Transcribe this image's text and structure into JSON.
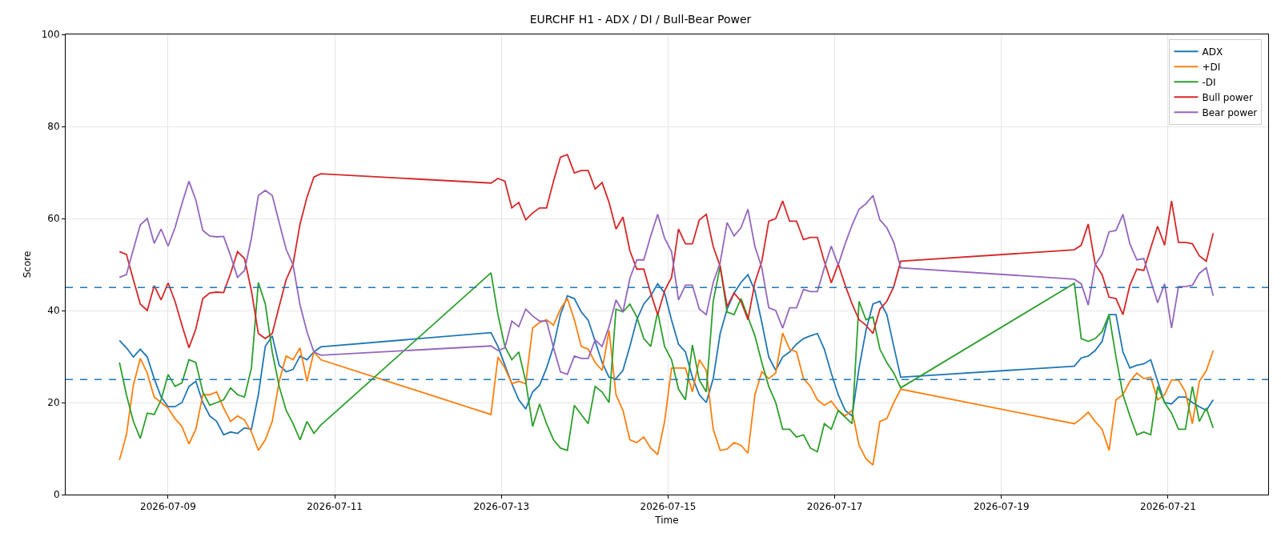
{
  "chart_data": {
    "type": "line",
    "title": "EURCHF H1 - ADX / DI / Bull-Bear Power",
    "xlabel": "Time",
    "ylabel": "Score",
    "x": [
      "2026-07-08T10:00",
      "2026-07-08T12:00",
      "2026-07-08T14:00",
      "2026-07-08T16:00",
      "2026-07-08T18:00",
      "2026-07-08T20:00",
      "2026-07-08T22:00",
      "2026-07-09T00:00",
      "2026-07-09T02:00",
      "2026-07-09T04:00",
      "2026-07-09T06:00",
      "2026-07-09T08:00",
      "2026-07-09T10:00",
      "2026-07-09T12:00",
      "2026-07-09T14:00",
      "2026-07-09T16:00",
      "2026-07-09T18:00",
      "2026-07-09T20:00",
      "2026-07-09T22:00",
      "2026-07-10T00:00",
      "2026-07-10T02:00",
      "2026-07-10T04:00",
      "2026-07-10T06:00",
      "2026-07-10T08:00",
      "2026-07-10T10:00",
      "2026-07-10T12:00",
      "2026-07-10T14:00",
      "2026-07-10T16:00",
      "2026-07-10T18:00",
      "2026-07-10T20:00",
      "2026-07-12T21:00",
      "2026-07-12T23:00",
      "2026-07-13T01:00",
      "2026-07-13T03:00",
      "2026-07-13T05:00",
      "2026-07-13T07:00",
      "2026-07-13T09:00",
      "2026-07-13T11:00",
      "2026-07-13T13:00",
      "2026-07-13T15:00",
      "2026-07-13T17:00",
      "2026-07-13T19:00",
      "2026-07-13T21:00",
      "2026-07-13T23:00",
      "2026-07-14T01:00",
      "2026-07-14T03:00",
      "2026-07-14T05:00",
      "2026-07-14T07:00",
      "2026-07-14T09:00",
      "2026-07-14T11:00",
      "2026-07-14T13:00",
      "2026-07-14T15:00",
      "2026-07-14T17:00",
      "2026-07-14T19:00",
      "2026-07-14T21:00",
      "2026-07-14T23:00",
      "2026-07-15T01:00",
      "2026-07-15T03:00",
      "2026-07-15T05:00",
      "2026-07-15T07:00",
      "2026-07-15T09:00",
      "2026-07-15T11:00",
      "2026-07-15T13:00",
      "2026-07-15T15:00",
      "2026-07-15T17:00",
      "2026-07-15T19:00",
      "2026-07-15T21:00",
      "2026-07-15T23:00",
      "2026-07-16T01:00",
      "2026-07-16T03:00",
      "2026-07-16T05:00",
      "2026-07-16T07:00",
      "2026-07-16T09:00",
      "2026-07-16T11:00",
      "2026-07-16T13:00",
      "2026-07-16T15:00",
      "2026-07-16T17:00",
      "2026-07-16T19:00",
      "2026-07-16T21:00",
      "2026-07-16T23:00",
      "2026-07-17T01:00",
      "2026-07-17T03:00",
      "2026-07-17T05:00",
      "2026-07-17T07:00",
      "2026-07-17T09:00",
      "2026-07-17T11:00",
      "2026-07-17T13:00",
      "2026-07-17T15:00",
      "2026-07-17T17:00",
      "2026-07-17T19:00",
      "2026-07-19T21:00",
      "2026-07-19T23:00",
      "2026-07-20T01:00",
      "2026-07-20T03:00",
      "2026-07-20T05:00",
      "2026-07-20T07:00",
      "2026-07-20T09:00",
      "2026-07-20T11:00",
      "2026-07-20T13:00",
      "2026-07-20T15:00",
      "2026-07-20T17:00",
      "2026-07-20T19:00",
      "2026-07-20T21:00",
      "2026-07-20T23:00",
      "2026-07-21T01:00",
      "2026-07-21T03:00",
      "2026-07-21T05:00",
      "2026-07-21T07:00",
      "2026-07-21T09:00",
      "2026-07-21T11:00",
      "2026-07-21T13:00"
    ],
    "series": [
      {
        "name": "ADX",
        "color": "#1f77b4",
        "values": [
          33.5,
          31.9,
          29.9,
          31.6,
          29.9,
          25.2,
          21.2,
          19.1,
          19.1,
          20,
          23.5,
          24.6,
          20,
          17.1,
          15.9,
          13,
          13.6,
          13.3,
          14.5,
          14.2,
          21.7,
          32.2,
          34.5,
          28.1,
          26.7,
          27.2,
          30.1,
          29.3,
          31,
          32.1,
          35.2,
          32.2,
          28.1,
          24.1,
          20.6,
          18.6,
          22.3,
          23.8,
          27.5,
          32.2,
          39.1,
          43.2,
          42.6,
          39.7,
          37.9,
          33.3,
          28.7,
          25.5,
          25.2,
          27,
          32.2,
          38,
          41.4,
          43.2,
          45.8,
          43.8,
          37.9,
          32.7,
          31,
          25.5,
          21.7,
          20,
          25.2,
          35,
          40.3,
          43.8,
          46.1,
          47.8,
          44.3,
          37.4,
          29.9,
          27,
          29.9,
          31,
          32.7,
          33.9,
          34.5,
          35,
          31.6,
          26.4,
          21.7,
          18.3,
          17.1,
          27.5,
          35.7,
          41.4,
          42,
          39.1,
          32.2,
          25.5,
          27.9,
          29.7,
          30.1,
          31.3,
          33.3,
          39.1,
          39.1,
          31,
          27.5,
          28.1,
          28.4,
          29.3,
          24.6,
          20,
          19.7,
          21.2,
          21.2,
          20,
          19.1,
          18.3,
          20.6
        ]
      },
      {
        "name": "+DI",
        "color": "#ff7f0e",
        "values": [
          7.5,
          13,
          23.8,
          29.6,
          26.4,
          21.2,
          20,
          18.8,
          16.5,
          14.8,
          11,
          14.2,
          21.7,
          21.7,
          22.3,
          18.8,
          15.9,
          17.1,
          16.2,
          13.6,
          9.6,
          11.9,
          15.9,
          24.6,
          30.1,
          29.3,
          31.9,
          24.6,
          31,
          29.3,
          17.4,
          29.9,
          27.5,
          24.1,
          24.6,
          24.1,
          36.2,
          37.4,
          38,
          36.8,
          40.3,
          42.6,
          38,
          32.2,
          31.6,
          28.7,
          27,
          35.7,
          21.7,
          18.3,
          11.9,
          11.3,
          12.5,
          10.1,
          8.7,
          15.9,
          27.5,
          27.5,
          27.5,
          22.3,
          29.3,
          27,
          14.2,
          9.6,
          9.9,
          11.3,
          10.7,
          9,
          21.7,
          26.7,
          25.2,
          26.4,
          35.1,
          31.6,
          31,
          25.2,
          23.5,
          20.6,
          19.4,
          20.3,
          18.3,
          17.1,
          18.3,
          10.7,
          7.8,
          6.4,
          15.9,
          16.5,
          20,
          22.9,
          15.4,
          16.5,
          17.9,
          15.9,
          14.2,
          9.6,
          20.6,
          21.7,
          24.6,
          26.4,
          25.2,
          25.5,
          20.6,
          21.7,
          24.9,
          24.9,
          22.3,
          15.4,
          24.6,
          26.9,
          31.3
        ]
      },
      {
        "name": "-DI",
        "color": "#2ca02c",
        "values": [
          28.7,
          21.7,
          15.9,
          12.2,
          17.7,
          17.4,
          20.6,
          26.1,
          23.5,
          24.3,
          29.3,
          28.7,
          22.3,
          19.4,
          20,
          20.6,
          23.2,
          21.7,
          21.2,
          27.5,
          46.1,
          41.4,
          31,
          23.5,
          18.3,
          15.4,
          11.9,
          15.9,
          13.3,
          15.1,
          48.2,
          39.1,
          32.2,
          29.3,
          31,
          24.6,
          14.8,
          19.7,
          15.4,
          11.9,
          10.1,
          9.6,
          19.4,
          17.4,
          15.4,
          23.5,
          22.3,
          20,
          40.3,
          39.7,
          41.4,
          38.6,
          33.9,
          32.2,
          39.7,
          32.2,
          29.3,
          22.9,
          20.6,
          32.5,
          24.9,
          22.3,
          42,
          49.6,
          39.7,
          39.1,
          42.6,
          38.6,
          34.5,
          28.7,
          23.5,
          20,
          14.2,
          14.2,
          12.5,
          13,
          10.1,
          9.3,
          15.4,
          14.2,
          18.3,
          16.8,
          15.4,
          42,
          38,
          38.6,
          31.6,
          28.7,
          26.4,
          23.2,
          45.9,
          33.9,
          33.3,
          33.9,
          35.4,
          39.1,
          29.9,
          21.7,
          17.1,
          13,
          13.6,
          13,
          23.5,
          20,
          17.7,
          14.2,
          14.2,
          23.5,
          15.9,
          18.8,
          14.5
        ]
      },
      {
        "name": "Bull power",
        "color": "#d62728",
        "values": [
          52.8,
          52.2,
          46.7,
          41.4,
          40,
          45.4,
          42.3,
          46,
          42,
          36.8,
          31.9,
          36,
          42.6,
          43.8,
          44,
          43.9,
          48.1,
          52.8,
          51.3,
          44.3,
          35,
          33.9,
          35,
          40.9,
          46.7,
          50.1,
          58.8,
          64.6,
          69,
          69.7,
          67.7,
          68.7,
          68.1,
          62.3,
          63.5,
          59.7,
          61.2,
          62.3,
          62.3,
          68.1,
          73.3,
          73.9,
          69.9,
          70.4,
          70.4,
          66.4,
          67.8,
          63.5,
          57.7,
          60.3,
          53,
          49,
          49,
          43.8,
          39.1,
          44.3,
          47.2,
          57.7,
          54.5,
          54.5,
          59.7,
          60.9,
          53.9,
          49.6,
          40.9,
          43.8,
          42,
          38,
          46.1,
          50.7,
          59.4,
          60,
          63.8,
          59.4,
          59.4,
          55.4,
          55.9,
          55.9,
          50.7,
          46,
          50.1,
          45.5,
          41.4,
          38,
          36.8,
          35,
          40.3,
          42,
          45.2,
          50.7,
          53.2,
          54.2,
          58.8,
          50.1,
          47.8,
          42.9,
          42.6,
          39.1,
          45.5,
          49,
          48.7,
          53.6,
          58.3,
          54.2,
          63.8,
          54.8,
          54.8,
          54.5,
          51.9,
          50.7,
          56.8
        ]
      },
      {
        "name": "Bear power",
        "color": "#9467bd",
        "values": [
          47.2,
          47.8,
          53.3,
          58.6,
          60,
          54.6,
          57.7,
          54,
          58,
          63.2,
          68.1,
          64,
          57.4,
          56.2,
          56,
          56.1,
          51.9,
          47.2,
          48.7,
          55.7,
          65,
          66.1,
          65,
          59.1,
          53.3,
          49.9,
          41.2,
          35.4,
          31,
          30.3,
          32.3,
          31.3,
          31.9,
          37.7,
          36.5,
          40.3,
          38.8,
          37.7,
          37.7,
          31.9,
          26.7,
          26.1,
          30.1,
          29.6,
          29.6,
          33.6,
          32.2,
          36.5,
          42.3,
          39.7,
          47,
          51,
          51,
          56.2,
          60.9,
          55.7,
          52.8,
          42.3,
          45.5,
          45.5,
          40.3,
          39.1,
          46.1,
          50.4,
          59.1,
          56.2,
          58,
          62,
          53.9,
          49.3,
          40.6,
          40,
          36.2,
          40.6,
          40.6,
          44.6,
          44.1,
          44.1,
          49.3,
          54,
          49.9,
          54.5,
          58.6,
          62,
          63.2,
          65,
          59.7,
          58,
          54.8,
          49.3,
          46.8,
          45.8,
          41.2,
          49.9,
          52.2,
          57.1,
          57.4,
          60.9,
          54.5,
          51,
          51.3,
          46.4,
          41.7,
          45.8,
          36.2,
          45.2,
          45.2,
          45.5,
          48.1,
          49.3,
          43.2
        ]
      }
    ],
    "xlim": [
      "2026-07-07T18:30",
      "2026-07-22T04:50"
    ],
    "xticks": [
      "2026-07-09",
      "2026-07-11",
      "2026-07-13",
      "2026-07-15",
      "2026-07-17",
      "2026-07-19",
      "2026-07-21"
    ],
    "ylim": [
      0,
      100
    ],
    "yticks": [
      0,
      20,
      40,
      60,
      80,
      100
    ],
    "ref_lines": [
      {
        "axis": "y",
        "value": 45,
        "color": "#1f77b4",
        "line_style": "dashed"
      },
      {
        "axis": "y",
        "value": 25,
        "color": "#1f77b4",
        "line_style": "dashed"
      }
    ],
    "grid": true,
    "legend": "top right",
    "line_style": "solid"
  }
}
